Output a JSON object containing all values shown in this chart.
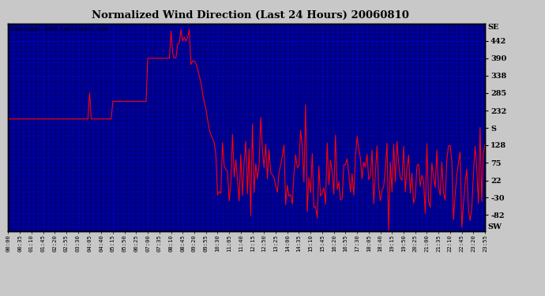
{
  "title": "Normalized Wind Direction (Last 24 Hours) 20060810",
  "copyright_text": "Copyright 2006 Cartronics.com",
  "plot_bg_color": "#000080",
  "line_color": "#FF0000",
  "grid_color": "#0000FF",
  "outer_bg": "#C8C8C8",
  "ytick_values": [
    442,
    390,
    338,
    285,
    232,
    180,
    128,
    75,
    22,
    -30,
    -82
  ],
  "ytick_labels": [
    "442",
    "390",
    "338",
    "285",
    "232",
    "S",
    "128",
    "75",
    "22",
    "-30",
    "-82"
  ],
  "right_top_label": "SE",
  "right_bottom_label": "SW",
  "ylim": [
    -130,
    494
  ],
  "xtick_labels": [
    "00:00",
    "00:35",
    "01:10",
    "01:45",
    "02:20",
    "02:55",
    "03:30",
    "04:05",
    "04:40",
    "05:15",
    "05:50",
    "06:25",
    "07:00",
    "07:35",
    "08:10",
    "08:45",
    "09:20",
    "09:55",
    "10:30",
    "11:05",
    "11:40",
    "12:15",
    "12:50",
    "13:25",
    "14:00",
    "14:35",
    "15:10",
    "15:45",
    "16:20",
    "16:55",
    "17:30",
    "18:05",
    "18:40",
    "19:15",
    "19:50",
    "20:25",
    "21:00",
    "21:35",
    "22:10",
    "22:45",
    "23:20",
    "23:55"
  ],
  "figwidth": 6.9,
  "figheight": 3.75,
  "dpi": 100
}
